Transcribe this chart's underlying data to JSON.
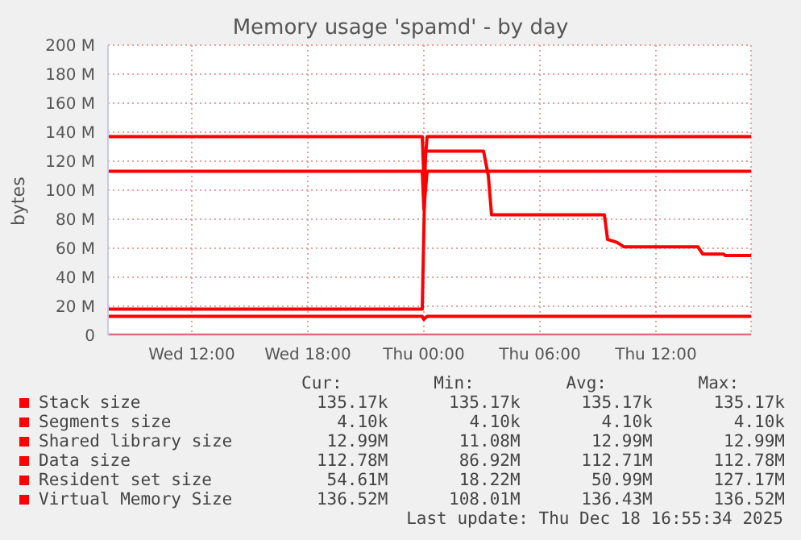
{
  "chart_data": {
    "type": "line",
    "title": "Memory usage 'spamd' - by day",
    "ylabel": "bytes",
    "xlim": [
      "2025-12-17T07:40",
      "2025-12-18T16:55"
    ],
    "xticks": [
      {
        "value": "2025-12-17T12:00",
        "label": "Wed 12:00"
      },
      {
        "value": "2025-12-17T18:00",
        "label": "Wed 18:00"
      },
      {
        "value": "2025-12-18T00:00",
        "label": "Thu 00:00"
      },
      {
        "value": "2025-12-18T06:00",
        "label": "Thu 06:00"
      },
      {
        "value": "2025-12-18T12:00",
        "label": "Thu 12:00"
      }
    ],
    "ylim": [
      0,
      200
    ],
    "yticks": [
      0,
      {
        "value": 20,
        "label": "20 M"
      },
      {
        "value": 40,
        "label": "40 M"
      },
      {
        "value": 60,
        "label": "60 M"
      },
      {
        "value": 80,
        "label": "80 M"
      },
      {
        "value": 100,
        "label": "100 M"
      },
      {
        "value": 120,
        "label": "120 M"
      },
      {
        "value": 140,
        "label": "140 M"
      },
      {
        "value": 160,
        "label": "160 M"
      },
      {
        "value": 180,
        "label": "180 M"
      },
      {
        "value": 200,
        "label": "200 M"
      }
    ],
    "grid": true,
    "legend": "bottom",
    "line_style": "solid",
    "marker": "none",
    "series": [
      {
        "name": "Stack size",
        "color": "#ff0000",
        "x": [
          "2025-12-17T07:40",
          "2025-12-18T16:55"
        ],
        "values": [
          0,
          0
        ]
      },
      {
        "name": "Segments size",
        "color": "#ff0000",
        "values": [
          null
        ]
      },
      {
        "name": "Shared library size",
        "color": "#ff0000",
        "x": [
          "2025-12-17T07:40",
          "2025-12-17T23:55",
          "2025-12-18T00:00",
          "2025-12-18T00:10",
          "2025-12-18T16:55"
        ],
        "values": [
          13,
          13,
          11,
          13,
          13
        ]
      },
      {
        "name": "Data size",
        "color": "#ff0000",
        "x": [
          "2025-12-17T07:40",
          "2025-12-17T23:55",
          "2025-12-18T00:00",
          "2025-12-18T00:10",
          "2025-12-18T16:55"
        ],
        "values": [
          113,
          113,
          87,
          113,
          113
        ]
      },
      {
        "name": "Resident set size",
        "color": "#ff0000",
        "x": [
          "2025-12-17T07:40",
          "2025-12-17T23:55",
          "2025-12-18T00:05",
          "2025-12-18T03:05",
          "2025-12-18T03:20",
          "2025-12-18T03:30",
          "2025-12-18T09:20",
          "2025-12-18T09:30",
          "2025-12-18T10:00",
          "2025-12-18T10:20",
          "2025-12-18T14:10",
          "2025-12-18T14:25",
          "2025-12-18T15:30",
          "2025-12-18T15:35",
          "2025-12-18T16:55"
        ],
        "values": [
          18,
          18,
          127,
          127,
          110,
          83,
          83,
          66,
          64,
          61,
          61,
          56,
          56,
          55,
          55
        ]
      },
      {
        "name": "Virtual Memory Size",
        "color": "#ff0000",
        "x": [
          "2025-12-17T07:40",
          "2025-12-17T23:55",
          "2025-12-18T00:00",
          "2025-12-18T00:10",
          "2025-12-18T16:55"
        ],
        "values": [
          137,
          137,
          108,
          137,
          137
        ]
      }
    ],
    "annotations": [
      "Cur:",
      "Min:",
      "Avg:",
      "Max:",
      "135.17k",
      "135.17k",
      "135.17k",
      "135.17k",
      "4.10k",
      "4.10k",
      "4.10k",
      "4.10k",
      "12.99M",
      "11.08M",
      "12.99M",
      "12.99M",
      "112.78M",
      "86.92M",
      "112.71M",
      "112.78M",
      "54.61M",
      "18.22M",
      "50.99M",
      "127.17M",
      "136.52M",
      "108.01M",
      "136.43M",
      "136.52M",
      "Last update: Thu Dec 18 16:55:34 2025"
    ]
  }
}
